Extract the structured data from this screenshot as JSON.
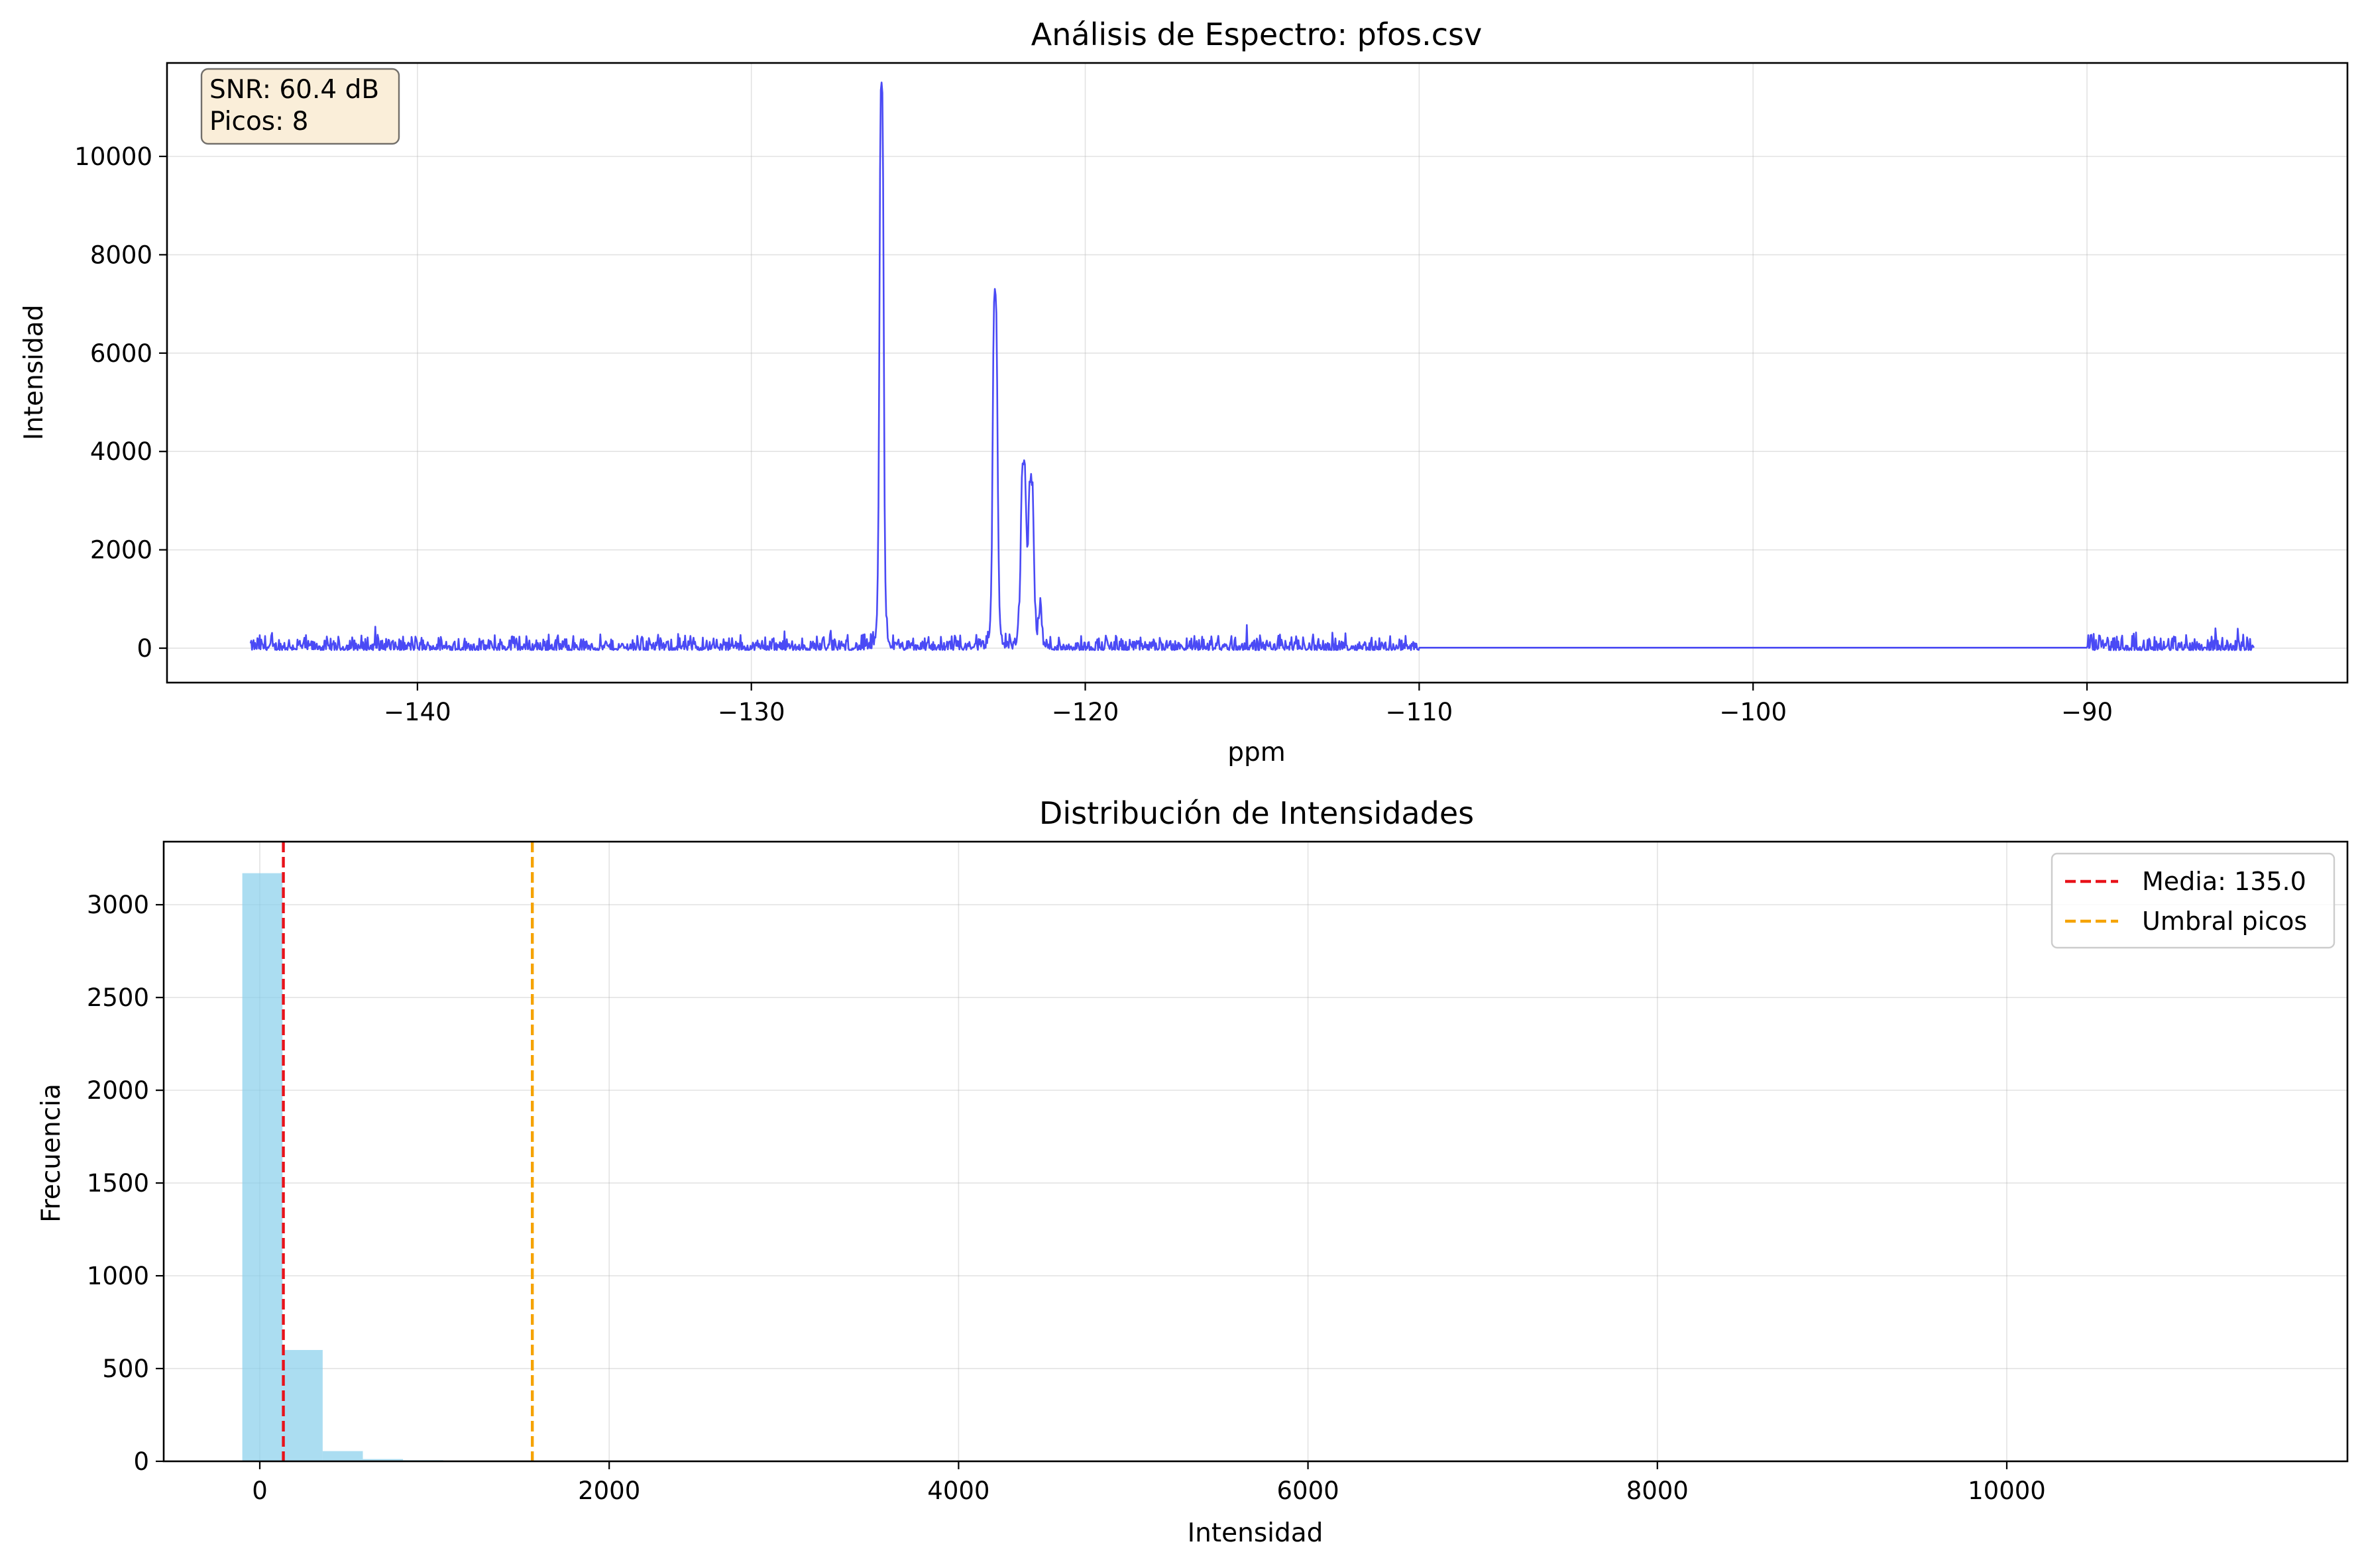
{
  "chart_data": [
    {
      "type": "line",
      "title": "Análisis de Espectro: pfos.csv",
      "xlabel": "ppm",
      "ylabel": "Intensidad",
      "xlim": [
        -147.5,
        -82.2
      ],
      "ylim": [
        -700,
        11900
      ],
      "xticks": [
        -140,
        -130,
        -120,
        -110,
        -100,
        -90
      ],
      "xtick_labels": [
        "−140",
        "−130",
        "−120",
        "−110",
        "−100",
        "−90"
      ],
      "yticks": [
        0,
        2000,
        4000,
        6000,
        8000,
        10000
      ],
      "ytick_labels": [
        "0",
        "2000",
        "4000",
        "6000",
        "8000",
        "10000"
      ],
      "grid": true,
      "line_color": "#4a4af5",
      "peaks": [
        {
          "ppm": -126.1,
          "intensity": 11400
        },
        {
          "ppm": -122.7,
          "intensity": 7200
        },
        {
          "ppm": -121.8,
          "intensity": 3750
        },
        {
          "ppm": -121.6,
          "intensity": 3500
        },
        {
          "ppm": -144.2,
          "intensity": 560
        },
        {
          "ppm": -134.2,
          "intensity": 600
        },
        {
          "ppm": -121.4,
          "intensity": 1100
        },
        {
          "ppm": -115.3,
          "intensity": 480
        }
      ],
      "regions": [
        {
          "from": -145.0,
          "to": -110.0,
          "noise_amplitude": 320,
          "note_state": "noisy"
        },
        {
          "from": -110.0,
          "to": -90.0,
          "noise_amplitude": 0,
          "note_state": "flat"
        },
        {
          "from": -90.0,
          "to": -85.0,
          "noise_amplitude": 340,
          "note_state": "noisy"
        }
      ],
      "info_box": {
        "line1": "SNR: 60.4 dB",
        "line2": "Picos: 8",
        "placement": "top-left",
        "facecolor": "#f5deb3"
      }
    },
    {
      "type": "bar",
      "title": "Distribución de Intensidades",
      "xlabel": "Intensidad",
      "ylabel": "Frecuencia",
      "xlim": [
        -550,
        11950
      ],
      "ylim": [
        0,
        3340
      ],
      "xticks": [
        0,
        2000,
        4000,
        6000,
        8000,
        10000
      ],
      "xtick_labels": [
        "0",
        "2000",
        "4000",
        "6000",
        "8000",
        "10000"
      ],
      "yticks": [
        0,
        500,
        1000,
        1500,
        2000,
        2500,
        3000
      ],
      "ytick_labels": [
        "0",
        "500",
        "1000",
        "1500",
        "2000",
        "2500",
        "3000"
      ],
      "grid": true,
      "bar_color": "#87ceeb",
      "bins": [
        {
          "left": -100,
          "right": 130,
          "count": 3170
        },
        {
          "left": 130,
          "right": 360,
          "count": 600
        },
        {
          "left": 360,
          "right": 590,
          "count": 55
        },
        {
          "left": 590,
          "right": 820,
          "count": 12
        },
        {
          "left": 820,
          "right": 1050,
          "count": 6
        },
        {
          "left": 1050,
          "right": 1280,
          "count": 2
        }
      ],
      "vlines": [
        {
          "x": 135.0,
          "color": "#e8121a",
          "label": "Media: 135.0"
        },
        {
          "x": 1560,
          "color": "#f5a300",
          "label": "Umbral picos"
        }
      ],
      "legend": {
        "placement": "top-right"
      }
    }
  ]
}
